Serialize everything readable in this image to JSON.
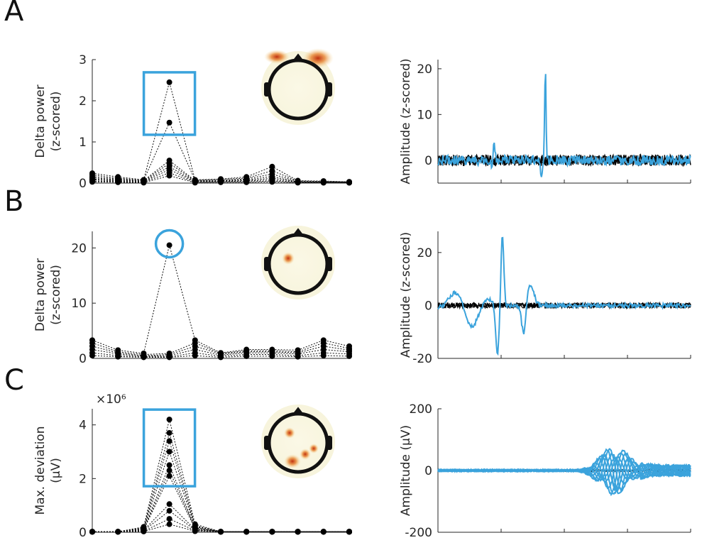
{
  "panels": [
    {
      "letter": "A"
    },
    {
      "letter": "B"
    },
    {
      "letter": "C"
    }
  ],
  "colors": {
    "highlight": "#3ba3dc",
    "trace": "#000000",
    "topo_bg": "#f7f4dc",
    "topo_hot": "#d2401a"
  },
  "chart_data": [
    {
      "id": "A-left",
      "type": "line",
      "ylabel": [
        "Delta power",
        "(z-scored)"
      ],
      "ylim": [
        0,
        3
      ],
      "yticks": [
        0,
        1,
        2,
        3
      ],
      "x": [
        1,
        2,
        3,
        4,
        5,
        6,
        7,
        8,
        9,
        10,
        11
      ],
      "highlight": "rectangle",
      "highlight_x": 4,
      "series": [
        {
          "values": [
            0.24,
            0.15,
            0.08,
            2.45,
            0.08,
            0.1,
            0.15,
            0.4,
            0.06,
            0.05,
            0.03
          ]
        },
        {
          "values": [
            0.2,
            0.12,
            0.07,
            1.47,
            0.07,
            0.09,
            0.12,
            0.3,
            0.05,
            0.04,
            0.03
          ]
        },
        {
          "values": [
            0.16,
            0.1,
            0.06,
            0.55,
            0.06,
            0.07,
            0.1,
            0.22,
            0.04,
            0.03,
            0.02
          ]
        },
        {
          "values": [
            0.13,
            0.08,
            0.05,
            0.48,
            0.05,
            0.06,
            0.08,
            0.16,
            0.03,
            0.03,
            0.02
          ]
        },
        {
          "values": [
            0.1,
            0.07,
            0.04,
            0.4,
            0.04,
            0.05,
            0.06,
            0.12,
            0.03,
            0.02,
            0.02
          ]
        },
        {
          "values": [
            0.08,
            0.05,
            0.03,
            0.33,
            0.03,
            0.04,
            0.05,
            0.08,
            0.02,
            0.02,
            0.01
          ]
        },
        {
          "values": [
            0.05,
            0.04,
            0.02,
            0.25,
            0.02,
            0.03,
            0.03,
            0.05,
            0.02,
            0.01,
            0.01
          ]
        },
        {
          "values": [
            0.03,
            0.02,
            0.01,
            0.18,
            0.01,
            0.02,
            0.02,
            0.03,
            0.01,
            0.01,
            0.01
          ]
        }
      ]
    },
    {
      "id": "A-right",
      "type": "line",
      "ylabel": [
        "Amplitude (z-scored)"
      ],
      "ylim": [
        -5,
        22
      ],
      "yticks": [
        0,
        10,
        20
      ]
    },
    {
      "id": "B-left",
      "type": "line",
      "ylabel": [
        "Delta power",
        "(z-scored)"
      ],
      "ylim": [
        0,
        23
      ],
      "yticks": [
        0,
        10,
        20
      ],
      "x": [
        1,
        2,
        3,
        4,
        5,
        6,
        7,
        8,
        9,
        10,
        11
      ],
      "highlight": "circle",
      "highlight_x": 4,
      "series": [
        {
          "values": [
            3.3,
            1.5,
            0.9,
            20.5,
            3.3,
            1.0,
            1.6,
            1.6,
            1.5,
            3.3,
            2.2
          ]
        },
        {
          "values": [
            2.8,
            1.2,
            0.7,
            0.9,
            2.8,
            0.9,
            1.4,
            1.4,
            1.2,
            2.8,
            1.8
          ]
        },
        {
          "values": [
            2.2,
            1.0,
            0.5,
            0.7,
            2.2,
            0.8,
            1.2,
            1.2,
            1.0,
            2.2,
            1.5
          ]
        },
        {
          "values": [
            1.6,
            0.8,
            0.4,
            0.5,
            1.6,
            0.6,
            1.0,
            1.0,
            0.8,
            1.6,
            1.2
          ]
        },
        {
          "values": [
            1.0,
            0.5,
            0.3,
            0.3,
            1.0,
            0.4,
            0.7,
            0.7,
            0.5,
            1.0,
            0.8
          ]
        },
        {
          "values": [
            0.5,
            0.3,
            0.2,
            0.2,
            0.5,
            0.2,
            0.4,
            0.4,
            0.3,
            0.5,
            0.4
          ]
        }
      ]
    },
    {
      "id": "B-right",
      "type": "line",
      "ylabel": [
        "Amplitude (z-scored)"
      ],
      "ylim": [
        -20,
        28
      ],
      "yticks": [
        -20,
        0,
        20
      ]
    },
    {
      "id": "C-left",
      "type": "line",
      "ylabel": [
        "Max. deviation",
        "(μV)"
      ],
      "yexponent": "×10⁶",
      "ylim": [
        0,
        4.6
      ],
      "yticks": [
        0,
        2,
        4
      ],
      "x": [
        1,
        2,
        3,
        4,
        5,
        6,
        7,
        8,
        9,
        10,
        11
      ],
      "highlight": "rectangle",
      "highlight_x": 4,
      "series": [
        {
          "values": [
            0.02,
            0.02,
            0.2,
            4.2,
            0.3,
            0.02,
            0.02,
            0.02,
            0.02,
            0.02,
            0.02
          ]
        },
        {
          "values": [
            0.02,
            0.02,
            0.18,
            3.7,
            0.25,
            0.02,
            0.02,
            0.02,
            0.02,
            0.02,
            0.02
          ]
        },
        {
          "values": [
            0.02,
            0.02,
            0.16,
            3.4,
            0.22,
            0.02,
            0.02,
            0.02,
            0.02,
            0.02,
            0.02
          ]
        },
        {
          "values": [
            0.02,
            0.02,
            0.14,
            3.0,
            0.2,
            0.02,
            0.02,
            0.02,
            0.02,
            0.02,
            0.02
          ]
        },
        {
          "values": [
            0.02,
            0.02,
            0.12,
            2.5,
            0.17,
            0.02,
            0.02,
            0.02,
            0.02,
            0.02,
            0.02
          ]
        },
        {
          "values": [
            0.02,
            0.02,
            0.1,
            2.3,
            0.15,
            0.02,
            0.02,
            0.02,
            0.02,
            0.02,
            0.02
          ]
        },
        {
          "values": [
            0.02,
            0.02,
            0.09,
            2.1,
            0.13,
            0.02,
            0.02,
            0.02,
            0.02,
            0.02,
            0.02
          ]
        },
        {
          "values": [
            0.02,
            0.02,
            0.08,
            1.05,
            0.1,
            0.02,
            0.02,
            0.02,
            0.02,
            0.02,
            0.02
          ]
        },
        {
          "values": [
            0.02,
            0.02,
            0.06,
            0.8,
            0.08,
            0.02,
            0.02,
            0.02,
            0.02,
            0.02,
            0.02
          ]
        },
        {
          "values": [
            0.02,
            0.02,
            0.04,
            0.5,
            0.06,
            0.02,
            0.02,
            0.02,
            0.02,
            0.02,
            0.02
          ]
        },
        {
          "values": [
            0.02,
            0.02,
            0.03,
            0.3,
            0.04,
            0.02,
            0.02,
            0.02,
            0.02,
            0.02,
            0.02
          ]
        }
      ]
    },
    {
      "id": "C-right",
      "type": "line",
      "ylabel": [
        "Amplitude (μV)"
      ],
      "ylim": [
        -200,
        200
      ],
      "yticks": [
        -200,
        0,
        200
      ]
    }
  ]
}
